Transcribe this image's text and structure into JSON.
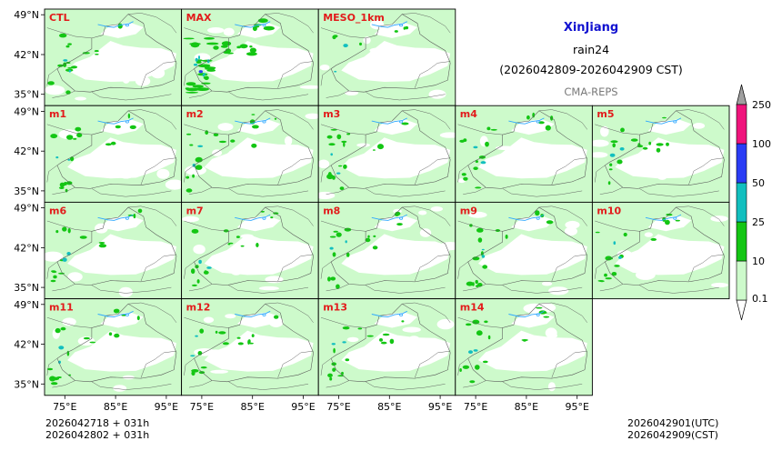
{
  "title": {
    "region": "XinJiang",
    "variable": "rain24",
    "period": "(2026042809-2026042909 CST)",
    "system": "CMA-REPS"
  },
  "footer": {
    "left_line1": "2026042718  +  031h",
    "left_line2": "2026042802  +  031h",
    "right_line1": "2026042901(UTC)",
    "right_line2": "2026042909(CST)"
  },
  "chart_data": {
    "type": "heatmap",
    "title": "XinJiang rain24 (2026042809-2026042909 CST) CMA-REPS",
    "panels": [
      "CTL",
      "MAX",
      "MESO_1km",
      "m1",
      "m2",
      "m3",
      "m4",
      "m5",
      "m6",
      "m7",
      "m8",
      "m9",
      "m10",
      "m11",
      "m12",
      "m13",
      "m14"
    ],
    "grid_rows": [
      3,
      5,
      5,
      4
    ],
    "x_ticks": [
      "75°E",
      "85°E",
      "95°E"
    ],
    "x_tick_values": [
      75,
      85,
      95
    ],
    "y_ticks": [
      "49°N",
      "42°N",
      "35°N"
    ],
    "y_tick_values": [
      49,
      42,
      35
    ],
    "xlim": [
      71,
      98
    ],
    "ylim": [
      33,
      50
    ],
    "colorbar": {
      "levels": [
        "0.1",
        "10",
        "25",
        "50",
        "100",
        "250"
      ],
      "level_values": [
        0.1,
        10,
        25,
        50,
        100,
        250
      ],
      "colors": [
        "#cdfacb",
        "#14c614",
        "#12bfbf",
        "#2a3cf5",
        "#f0147c"
      ],
      "extend": "both",
      "under_color": "#ffffff",
      "over_color": "#a0a0a0"
    }
  },
  "colors": {
    "panel_label": "#e21b1b",
    "title_region": "#1010d0",
    "subtitle_gray": "#7a7a7a",
    "light_green": "#cdfacb",
    "green": "#14c614",
    "teal": "#12bfbf",
    "blue": "#2a3cf5",
    "magenta": "#f0147c",
    "border": "#555555",
    "lake": "#2ea8ff"
  }
}
